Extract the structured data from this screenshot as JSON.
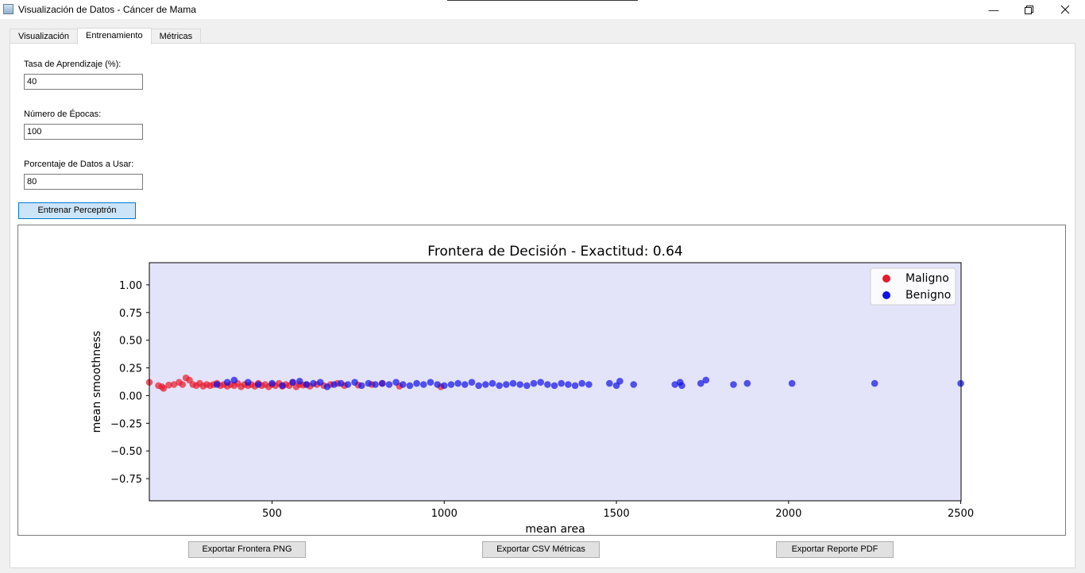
{
  "window": {
    "title": "Visualización de Datos - Cáncer de Mama"
  },
  "tabs": [
    {
      "label": "Visualización",
      "active": false
    },
    {
      "label": "Entrenamiento",
      "active": true
    },
    {
      "label": "Métricas",
      "active": false
    }
  ],
  "form": {
    "learning_rate_label": "Tasa de Aprendizaje (%):",
    "learning_rate_value": "40",
    "epochs_label": "Número de Épocas:",
    "epochs_value": "100",
    "data_percent_label": "Porcentaje de Datos a Usar:",
    "data_percent_value": "80",
    "train_button": "Entrenar Perceptrón"
  },
  "export": {
    "png_button": "Exportar Frontera PNG",
    "csv_button": "Exportar CSV Métricas",
    "pdf_button": "Exportar Reporte PDF"
  },
  "colors": {
    "malignant": "#e8192c",
    "benign": "#1010e8",
    "plot_bg": "#e3e3f9",
    "accent": "#0078d7"
  },
  "chart_data": {
    "type": "scatter",
    "title": "Frontera de Decisión - Exactitud: 0.64",
    "xlabel": "mean area",
    "ylabel": "mean smoothness",
    "xlim": [
      143.5,
      2501
    ],
    "ylim": [
      -0.95,
      1.2
    ],
    "xticks": [
      500,
      1000,
      1500,
      2000,
      2500
    ],
    "yticks": [
      1.0,
      0.75,
      0.5,
      0.25,
      0.0,
      -0.25,
      -0.5,
      -0.75
    ],
    "ytick_labels": [
      "1.00",
      "0.75",
      "0.50",
      "0.25",
      "0.00",
      "−0.25",
      "−0.50",
      "−0.75"
    ],
    "legend_position": "top-right",
    "background": "decision region (single class, lavender)",
    "series": [
      {
        "name": "Maligno",
        "color": "#e8192c",
        "points": [
          [
            143.5,
            0.12
          ],
          [
            170,
            0.09
          ],
          [
            180,
            0.08
          ],
          [
            185,
            0.065
          ],
          [
            200,
            0.095
          ],
          [
            215,
            0.1
          ],
          [
            230,
            0.12
          ],
          [
            240,
            0.1
          ],
          [
            250,
            0.16
          ],
          [
            260,
            0.14
          ],
          [
            270,
            0.1
          ],
          [
            280,
            0.09
          ],
          [
            290,
            0.11
          ],
          [
            300,
            0.085
          ],
          [
            310,
            0.1
          ],
          [
            320,
            0.09
          ],
          [
            330,
            0.1
          ],
          [
            340,
            0.11
          ],
          [
            350,
            0.09
          ],
          [
            360,
            0.1
          ],
          [
            370,
            0.085
          ],
          [
            380,
            0.1
          ],
          [
            390,
            0.09
          ],
          [
            400,
            0.11
          ],
          [
            410,
            0.08
          ],
          [
            420,
            0.1
          ],
          [
            430,
            0.09
          ],
          [
            440,
            0.1
          ],
          [
            450,
            0.085
          ],
          [
            460,
            0.11
          ],
          [
            470,
            0.09
          ],
          [
            480,
            0.1
          ],
          [
            490,
            0.08
          ],
          [
            500,
            0.1
          ],
          [
            510,
            0.09
          ],
          [
            520,
            0.11
          ],
          [
            530,
            0.085
          ],
          [
            540,
            0.1
          ],
          [
            550,
            0.09
          ],
          [
            560,
            0.12
          ],
          [
            570,
            0.08
          ],
          [
            580,
            0.1
          ],
          [
            590,
            0.095
          ],
          [
            600,
            0.1
          ],
          [
            610,
            0.085
          ],
          [
            630,
            0.1
          ],
          [
            650,
            0.09
          ],
          [
            670,
            0.1
          ],
          [
            690,
            0.11
          ],
          [
            710,
            0.09
          ],
          [
            750,
            0.095
          ],
          [
            790,
            0.1
          ],
          [
            820,
            0.11
          ],
          [
            870,
            0.085
          ],
          [
            990,
            0.08
          ]
        ]
      },
      {
        "name": "Benigno",
        "color": "#1010e8",
        "points": [
          [
            340,
            0.1
          ],
          [
            370,
            0.12
          ],
          [
            390,
            0.14
          ],
          [
            430,
            0.12
          ],
          [
            460,
            0.1
          ],
          [
            500,
            0.11
          ],
          [
            530,
            0.09
          ],
          [
            560,
            0.12
          ],
          [
            580,
            0.13
          ],
          [
            600,
            0.1
          ],
          [
            620,
            0.11
          ],
          [
            640,
            0.12
          ],
          [
            660,
            0.08
          ],
          [
            680,
            0.1
          ],
          [
            700,
            0.11
          ],
          [
            720,
            0.1
          ],
          [
            740,
            0.12
          ],
          [
            760,
            0.09
          ],
          [
            780,
            0.11
          ],
          [
            800,
            0.1
          ],
          [
            820,
            0.11
          ],
          [
            840,
            0.1
          ],
          [
            860,
            0.12
          ],
          [
            880,
            0.1
          ],
          [
            900,
            0.09
          ],
          [
            920,
            0.11
          ],
          [
            940,
            0.1
          ],
          [
            960,
            0.12
          ],
          [
            980,
            0.1
          ],
          [
            1000,
            0.09
          ],
          [
            1020,
            0.1
          ],
          [
            1040,
            0.11
          ],
          [
            1060,
            0.1
          ],
          [
            1080,
            0.12
          ],
          [
            1100,
            0.09
          ],
          [
            1120,
            0.1
          ],
          [
            1140,
            0.11
          ],
          [
            1160,
            0.09
          ],
          [
            1180,
            0.1
          ],
          [
            1200,
            0.11
          ],
          [
            1220,
            0.1
          ],
          [
            1240,
            0.09
          ],
          [
            1260,
            0.11
          ],
          [
            1280,
            0.12
          ],
          [
            1300,
            0.1
          ],
          [
            1320,
            0.09
          ],
          [
            1340,
            0.11
          ],
          [
            1360,
            0.1
          ],
          [
            1380,
            0.09
          ],
          [
            1400,
            0.11
          ],
          [
            1420,
            0.1
          ],
          [
            1480,
            0.11
          ],
          [
            1500,
            0.09
          ],
          [
            1510,
            0.13
          ],
          [
            1550,
            0.1
          ],
          [
            1670,
            0.1
          ],
          [
            1685,
            0.12
          ],
          [
            1690,
            0.09
          ],
          [
            1745,
            0.11
          ],
          [
            1760,
            0.14
          ],
          [
            1840,
            0.1
          ],
          [
            1880,
            0.11
          ],
          [
            2010,
            0.11
          ],
          [
            2250,
            0.11
          ],
          [
            2500,
            0.11
          ]
        ]
      }
    ]
  }
}
